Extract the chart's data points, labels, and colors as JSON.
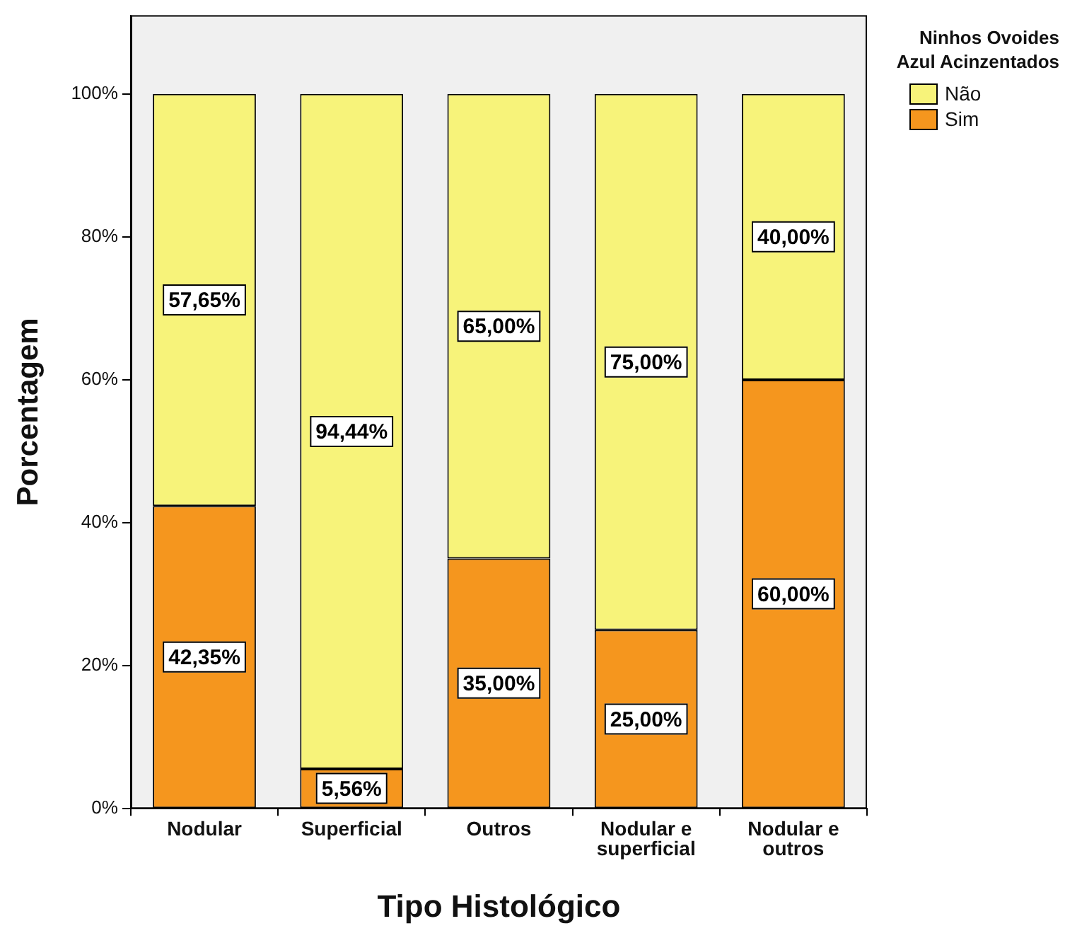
{
  "chart_data": {
    "type": "bar",
    "stacked": true,
    "xlabel": "Tipo Histológico",
    "ylabel": "Porcentagem",
    "legend_title": "Ninhos Ovoides Azul Acinzentados",
    "legend": "top right",
    "grid": false,
    "categories": [
      "Nodular",
      "Superficial",
      "Outros",
      "Nodular e superficial",
      "Nodular e outros"
    ],
    "ylim": [
      0,
      111
    ],
    "yticks": [
      {
        "value": 0,
        "label": "0%"
      },
      {
        "value": 20,
        "label": "20%"
      },
      {
        "value": 40,
        "label": "40%"
      },
      {
        "value": 60,
        "label": "60%"
      },
      {
        "value": 80,
        "label": "80%"
      },
      {
        "value": 100,
        "label": "100%"
      }
    ],
    "series": [
      {
        "name": "Sim",
        "color": "#f5961e",
        "values": [
          42.35,
          5.56,
          35,
          25,
          60
        ],
        "value_labels": [
          "42,35%",
          "5,56%",
          "35,00%",
          "25,00%",
          "60,00%"
        ]
      },
      {
        "name": "Não",
        "color": "#f7f37a",
        "values": [
          57.65,
          94.44,
          65,
          75,
          40
        ],
        "value_labels": [
          "57,65%",
          "94,44%",
          "65,00%",
          "75,00%",
          "40,00%"
        ]
      }
    ]
  }
}
